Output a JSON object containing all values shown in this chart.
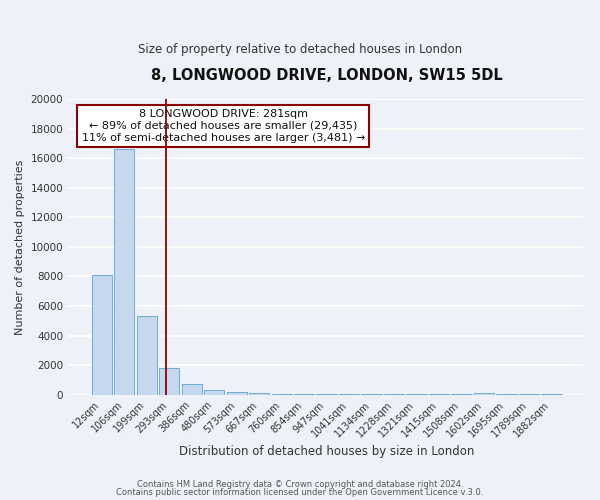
{
  "title": "8, LONGWOOD DRIVE, LONDON, SW15 5DL",
  "subtitle": "Size of property relative to detached houses in London",
  "xlabel": "Distribution of detached houses by size in London",
  "ylabel": "Number of detached properties",
  "bar_labels": [
    "12sqm",
    "106sqm",
    "199sqm",
    "293sqm",
    "386sqm",
    "480sqm",
    "573sqm",
    "667sqm",
    "760sqm",
    "854sqm",
    "947sqm",
    "1041sqm",
    "1134sqm",
    "1228sqm",
    "1321sqm",
    "1415sqm",
    "1508sqm",
    "1602sqm",
    "1695sqm",
    "1789sqm",
    "1882sqm"
  ],
  "bar_heights": [
    8100,
    16600,
    5300,
    1800,
    700,
    300,
    200,
    100,
    50,
    50,
    50,
    50,
    50,
    50,
    50,
    50,
    50,
    100,
    50,
    50,
    50
  ],
  "bar_color": "#c5d8ed",
  "bar_edge_color": "#6aaed6",
  "vline_color": "#8B0000",
  "annotation_text": "8 LONGWOOD DRIVE: 281sqm\n← 89% of detached houses are smaller (29,435)\n11% of semi-detached houses are larger (3,481) →",
  "annotation_box_color": "#ffffff",
  "annotation_box_edge": "#8B0000",
  "ylim": [
    0,
    20000
  ],
  "yticks": [
    0,
    2000,
    4000,
    6000,
    8000,
    10000,
    12000,
    14000,
    16000,
    18000,
    20000
  ],
  "footer_line1": "Contains HM Land Registry data © Crown copyright and database right 2024.",
  "footer_line2": "Contains public sector information licensed under the Open Government Licence v.3.0.",
  "background_color": "#eef2f8",
  "grid_color": "#ffffff",
  "figsize": [
    6.0,
    5.0
  ],
  "dpi": 100
}
